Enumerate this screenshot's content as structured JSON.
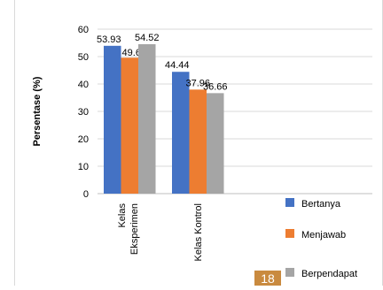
{
  "page_number": "18",
  "colors": {
    "grid": "#d9d9d9",
    "axis": "#bfbfbf",
    "text": "#000000"
  },
  "chart_data": {
    "type": "bar",
    "title": "",
    "xlabel": "",
    "ylabel": "Persentase (%)",
    "ylim": [
      0,
      60
    ],
    "yticks": [
      0,
      10,
      20,
      30,
      40,
      50,
      60
    ],
    "grid": true,
    "legend_position": "right",
    "categories": [
      {
        "line1": "Kelas",
        "line2": "Eksperimen"
      },
      {
        "line1": "Kelas Kontrol",
        "line2": ""
      }
    ],
    "series": [
      {
        "name": "Bertanya",
        "color": "#4472c4",
        "values": [
          53.93,
          44.44
        ],
        "labels": [
          "53.93",
          "44.44"
        ]
      },
      {
        "name": "Menjawab",
        "color": "#ed7d31",
        "values": [
          49.6,
          37.96
        ],
        "labels": [
          "49.6",
          "37.96"
        ]
      },
      {
        "name": "Berpendapat",
        "color": "#a5a5a5",
        "values": [
          54.52,
          36.66
        ],
        "labels": [
          "54.52",
          "36.66"
        ]
      }
    ]
  }
}
